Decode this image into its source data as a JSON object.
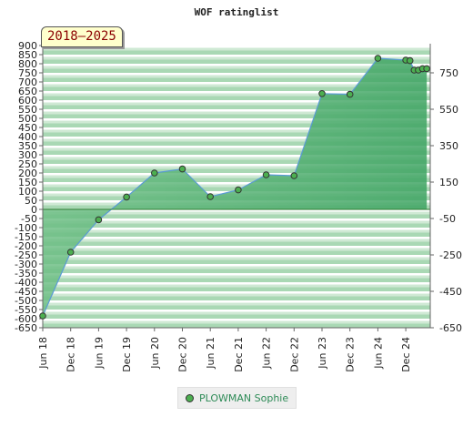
{
  "chart_data": {
    "type": "area",
    "title": "WOF ratinglist",
    "period_label": "2018–2025",
    "x_labels": [
      "Jun 18",
      "Dec 18",
      "Jun 19",
      "Dec 19",
      "Jun 20",
      "Dec 20",
      "Jun 21",
      "Dec 21",
      "Jun 22",
      "Dec 22",
      "Jun 23",
      "Dec 23",
      "Jun 24",
      "Dec 24"
    ],
    "left_ticks": [
      900,
      850,
      800,
      750,
      700,
      650,
      600,
      550,
      500,
      450,
      400,
      350,
      300,
      250,
      200,
      150,
      100,
      50,
      0,
      -50,
      -100,
      -150,
      -200,
      -250,
      -300,
      -350,
      -400,
      -450,
      -500,
      -550,
      -600,
      -650
    ],
    "right_ticks": [
      750,
      550,
      350,
      150,
      -50,
      -250,
      -450,
      -650
    ],
    "ylim": [
      -650,
      900
    ],
    "series": [
      {
        "name": "PLOWMAN Sophie",
        "color": "#4caf50",
        "points": [
          {
            "x": 0,
            "y": -585
          },
          {
            "x": 1,
            "y": -235
          },
          {
            "x": 2,
            "y": -57
          },
          {
            "x": 3,
            "y": 68
          },
          {
            "x": 4,
            "y": 200
          },
          {
            "x": 5,
            "y": 222
          },
          {
            "x": 6,
            "y": 70
          },
          {
            "x": 7,
            "y": 107
          },
          {
            "x": 8,
            "y": 190
          },
          {
            "x": 9,
            "y": 185
          },
          {
            "x": 10,
            "y": 636
          },
          {
            "x": 11,
            "y": 632
          },
          {
            "x": 12,
            "y": 830
          },
          {
            "x": 13,
            "y": 820
          },
          {
            "x": 13.15,
            "y": 817
          },
          {
            "x": 13.3,
            "y": 765
          },
          {
            "x": 13.45,
            "y": 765
          },
          {
            "x": 13.6,
            "y": 773
          },
          {
            "x": 13.75,
            "y": 773
          }
        ]
      }
    ],
    "grid": true,
    "legend_position": "bottom"
  }
}
